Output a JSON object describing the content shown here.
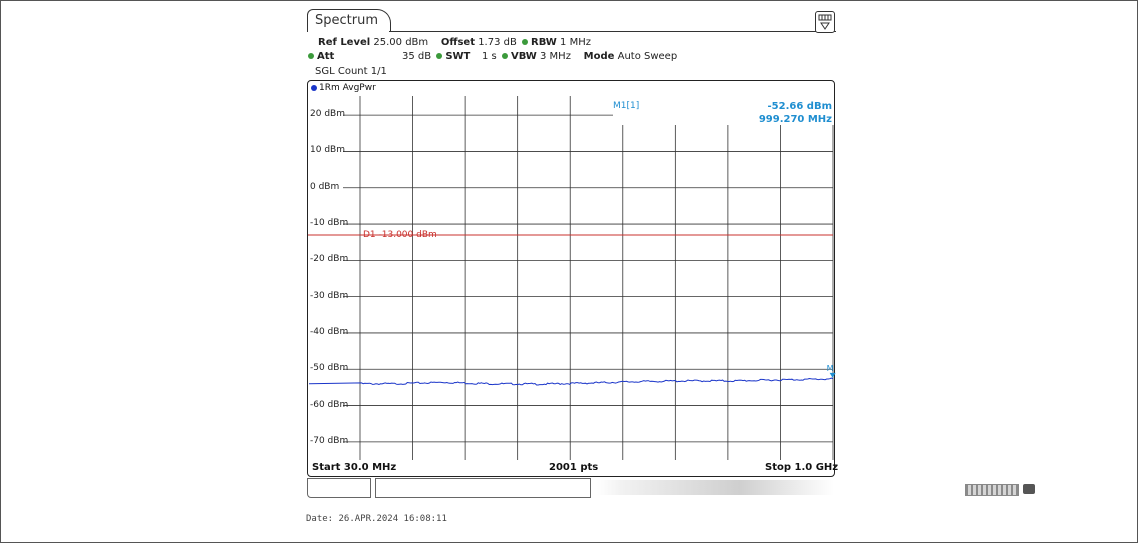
{
  "window": {
    "tab_title": "Spectrum"
  },
  "settings": {
    "ref_level_label": "Ref Level",
    "ref_level_value": "25.00 dBm",
    "offset_label": "Offset",
    "offset_value": "1.73 dB",
    "rbw_label": "RBW",
    "rbw_value": "1 MHz",
    "att_label": "Att",
    "att_value": "35 dB",
    "swt_label": "SWT",
    "swt_value": "1 s",
    "vbw_label": "VBW",
    "vbw_value": "3 MHz",
    "mode_label": "Mode",
    "mode_value": "Auto Sweep",
    "sgl_count": "SGL Count 1/1",
    "indicator_color": "#3b9a3b"
  },
  "trace": {
    "label": "1Rm AvgPwr",
    "color": "#1a35c9"
  },
  "marker": {
    "name": "M1[1]",
    "level": "-52.66 dBm",
    "frequency": "999.270 MHz",
    "tag": "M",
    "color": "#1f8ed0"
  },
  "display_line": {
    "label": "D1 -13.000 dBm",
    "level_dbm": -13.0,
    "color": "#c9302c"
  },
  "footer": {
    "start": "Start 30.0 MHz",
    "points": "2001 pts",
    "stop": "Stop 1.0 GHz"
  },
  "status": {
    "date_small": "26.04.2024"
  },
  "date_line": "Date: 26.APR.2024  16:08:11",
  "chart_data": {
    "type": "line",
    "x_unit": "MHz",
    "y_unit": "dBm",
    "xlim": [
      30.0,
      1000.0
    ],
    "ylim": [
      -75,
      25
    ],
    "y_tick_labels": [
      "20 dBm",
      "10 dBm",
      "0 dBm",
      "-10 dBm",
      "-20 dBm",
      "-30 dBm",
      "-40 dBm",
      "-50 dBm",
      "-60 dBm",
      "-70 dBm"
    ],
    "y_ticks": [
      20,
      10,
      0,
      -10,
      -20,
      -30,
      -40,
      -50,
      -60,
      -70
    ],
    "grid": true,
    "series": [
      {
        "name": "1Rm AvgPwr",
        "x": [
          30,
          100,
          200,
          300,
          400,
          500,
          600,
          700,
          800,
          900,
          999.27
        ],
        "y": [
          -54.0,
          -54.0,
          -53.6,
          -54.0,
          -54.1,
          -53.8,
          -53.4,
          -53.2,
          -53.2,
          -52.9,
          -52.66
        ]
      }
    ]
  }
}
